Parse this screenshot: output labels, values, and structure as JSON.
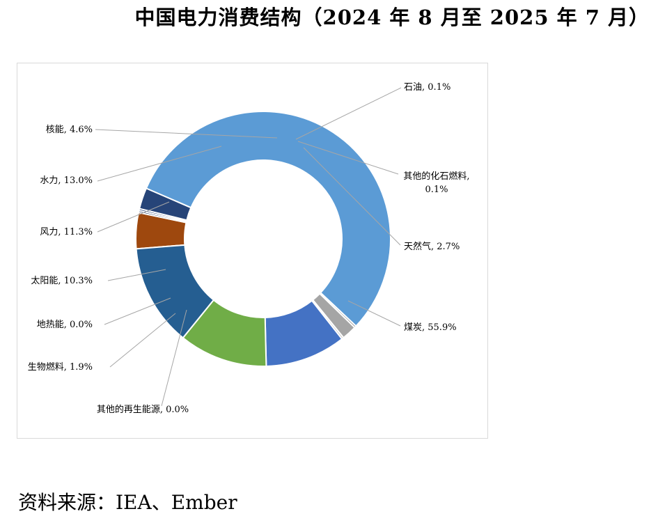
{
  "title": "中国电力消费结构（2024 年 8 月至 2025 年 7 月）",
  "source": "资料来源：IEA、Ember",
  "chart_data": {
    "type": "pie",
    "subtype": "donut",
    "slices": [
      {
        "name": "核能",
        "value": 4.6,
        "label": "核能, 4.6%",
        "color": "#9e480e"
      },
      {
        "name": "石油",
        "value": 0.1,
        "label": "石油, 0.1%",
        "color": "#1f3864"
      },
      {
        "name": "其他的化石燃料",
        "value": 0.1,
        "label": [
          "其他的化石燃料,",
          "0.1%"
        ],
        "color": "#264478"
      },
      {
        "name": "天然气",
        "value": 2.7,
        "label": "天然气, 2.7%",
        "color": "#264478"
      },
      {
        "name": "煤炭",
        "value": 55.9,
        "label": "煤炭, 55.9%",
        "color": "#5b9bd5"
      },
      {
        "name": "其他的再生能源",
        "value": 0.0,
        "label": "其他的再生能源, 0.0%",
        "color": "#7f7f7f"
      },
      {
        "name": "生物燃料",
        "value": 1.9,
        "label": "生物燃料, 1.9%",
        "color": "#a5a5a5"
      },
      {
        "name": "地热能",
        "value": 0.0,
        "label": "地热能, 0.0%",
        "color": "#bfbfbf"
      },
      {
        "name": "太阳能",
        "value": 10.3,
        "label": "太阳能, 10.3%",
        "color": "#4472c4"
      },
      {
        "name": "风力",
        "value": 11.3,
        "label": "风力, 11.3%",
        "color": "#70ad47"
      },
      {
        "name": "水力",
        "value": 13.0,
        "label": "水力, 13.0%",
        "color": "#255e91"
      }
    ],
    "legend": "none"
  }
}
